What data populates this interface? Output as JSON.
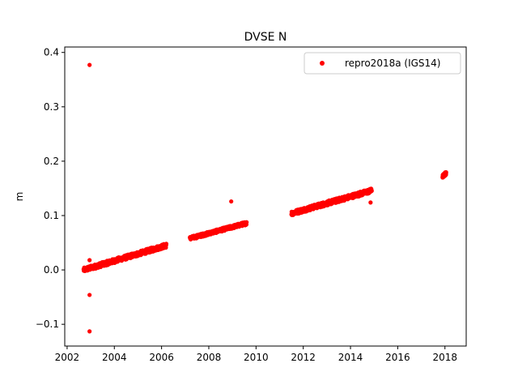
{
  "chart_data": {
    "type": "scatter",
    "title": "DVSE N",
    "xlabel": "",
    "ylabel": "m",
    "xlim": [
      2001.9,
      2018.9
    ],
    "ylim": [
      -0.14,
      0.41
    ],
    "x_ticks": [
      2002,
      2004,
      2006,
      2008,
      2010,
      2012,
      2014,
      2016,
      2018
    ],
    "y_ticks": [
      -0.1,
      0.0,
      0.1,
      0.2,
      0.3,
      0.4
    ],
    "y_tick_labels": [
      "−0.1",
      "0.0",
      "0.1",
      "0.2",
      "0.3",
      "0.4"
    ],
    "grid": false,
    "legend": {
      "placement": "top-right"
    },
    "series": [
      {
        "name": "repro2018a (IGS14)",
        "color": "#ff0000",
        "marker": "circle",
        "segments": [
          {
            "x_start": 2002.7,
            "x_end": 2006.2,
            "y_start": 0.0,
            "y_end": 0.045,
            "jitter": 0.004
          },
          {
            "x_start": 2007.2,
            "x_end": 2009.6,
            "y_start": 0.058,
            "y_end": 0.086,
            "jitter": 0.003
          },
          {
            "x_start": 2011.5,
            "x_end": 2014.9,
            "y_start": 0.104,
            "y_end": 0.146,
            "jitter": 0.004
          },
          {
            "x_start": 2017.9,
            "x_end": 2018.05,
            "y_start": 0.172,
            "y_end": 0.178,
            "jitter": 0.003
          }
        ],
        "outliers": [
          {
            "x": 2002.95,
            "y": 0.377
          },
          {
            "x": 2002.95,
            "y": -0.113
          },
          {
            "x": 2002.95,
            "y": -0.046
          },
          {
            "x": 2002.95,
            "y": 0.018
          },
          {
            "x": 2008.95,
            "y": 0.126
          },
          {
            "x": 2014.85,
            "y": 0.124
          }
        ]
      }
    ]
  }
}
